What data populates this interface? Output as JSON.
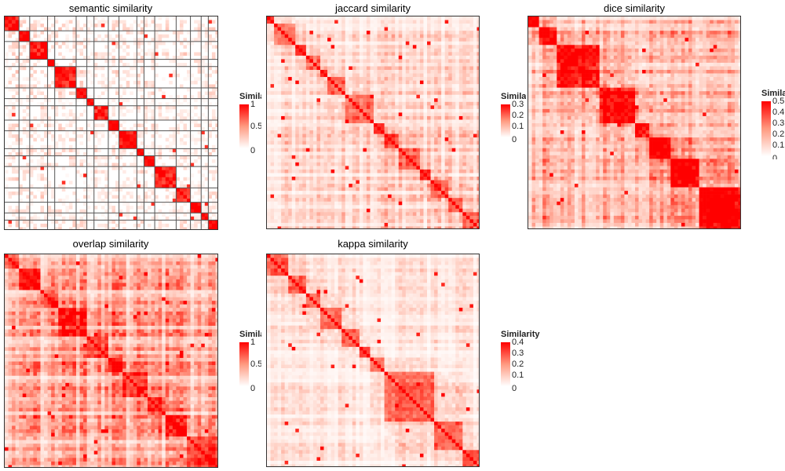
{
  "chart_data": [
    {
      "type": "heatmap",
      "title": "semantic similarity",
      "legend": {
        "title": "Similarity",
        "ticks": [
          "1",
          "0.5",
          "0"
        ],
        "range": [
          0,
          1
        ]
      },
      "n": 60,
      "blocks": [
        4,
        3,
        5,
        2,
        6,
        3,
        2,
        4,
        3,
        5,
        2,
        3,
        6,
        4,
        3,
        2,
        3
      ],
      "background": 0.05,
      "block_value": 0.25,
      "grid_lines": true
    },
    {
      "type": "heatmap",
      "title": "jaccard similarity",
      "legend": {
        "title": "Similarity",
        "ticks": [
          "0.3",
          "0.2",
          "0.1",
          "0"
        ],
        "range": [
          0,
          0.35
        ]
      },
      "n": 60,
      "blocks": [
        2,
        6,
        3,
        4,
        2,
        5,
        8,
        3,
        4,
        6,
        3,
        5,
        4,
        5
      ],
      "background": 0.09,
      "block_value": 0.14
    },
    {
      "type": "heatmap",
      "title": "dice similarity",
      "legend": {
        "title": "Similarity",
        "ticks": [
          "0.5",
          "0.4",
          "0.3",
          "0.2",
          "0.1",
          "0"
        ],
        "range": [
          0,
          0.55
        ]
      },
      "n": 60,
      "blocks": [
        3,
        5,
        12,
        10,
        4,
        6,
        8,
        12
      ],
      "background": 0.15,
      "block_value": 0.25
    },
    {
      "type": "heatmap",
      "title": "overlap similarity",
      "legend": {
        "title": "Similarity",
        "ticks": [
          "1",
          "0.5",
          "0"
        ],
        "range": [
          0,
          1
        ]
      },
      "n": 60,
      "blocks": [
        4,
        6,
        5,
        8,
        6,
        4,
        7,
        5,
        6,
        9
      ],
      "background": 0.2,
      "block_value": 0.15
    },
    {
      "type": "heatmap",
      "title": "kappa similarity",
      "legend": {
        "title": "Similarity",
        "ticks": [
          "0.4",
          "0.3",
          "0.2",
          "0.1",
          "0"
        ],
        "range": [
          0,
          0.45
        ]
      },
      "n": 60,
      "blocks": [
        6,
        5,
        4,
        6,
        5,
        3,
        4,
        14,
        8,
        5
      ],
      "background": 0.06,
      "block_value": 0.16
    }
  ],
  "colors": {
    "high": "#ff0000",
    "low": "#ffffff"
  }
}
